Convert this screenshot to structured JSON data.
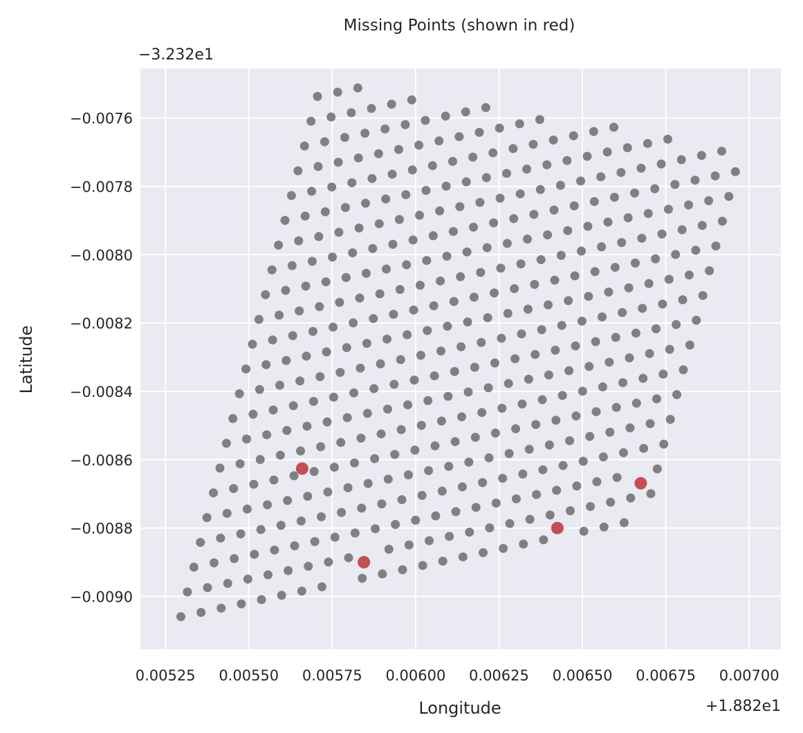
{
  "chart_data": {
    "type": "scatter",
    "title": "Missing Points (shown in red)",
    "xlabel": "Longitude",
    "ylabel": "Latitude",
    "x_offset_label": "+1.882e1",
    "y_offset_label": "−3.232e1",
    "x_offset": 18.82,
    "y_offset": -32.32,
    "xlim": [
      0.005175,
      0.007095
    ],
    "ylim": [
      -0.009155,
      -0.007455
    ],
    "xticks": [
      0.00525,
      0.0055,
      0.00575,
      0.006,
      0.00625,
      0.0065,
      0.00675,
      0.007
    ],
    "xtick_labels": [
      "0.00525",
      "0.00550",
      "0.00575",
      "0.00600",
      "0.00625",
      "0.00650",
      "0.00675",
      "0.00700"
    ],
    "yticks": [
      -0.009,
      -0.0088,
      -0.0086,
      -0.0084,
      -0.0082,
      -0.008,
      -0.0078,
      -0.0076
    ],
    "ytick_labels": [
      "−0.0090",
      "−0.0088",
      "−0.0086",
      "−0.0084",
      "−0.0082",
      "−0.0080",
      "−0.0078",
      "−0.0076"
    ],
    "grid": true,
    "colors": {
      "background": "#eaeaf2",
      "grid": "#ffffff",
      "present": "#808080",
      "missing": "#c44e52"
    },
    "grid_points": {
      "origin": [
        0.005236,
        -0.009072
      ],
      "step_a": [
        1.95e-05,
        7.25e-05
      ],
      "step_b": [
        6.04e-05,
        1.25e-05
      ],
      "rows": 30,
      "cols": 25,
      "boundary": {
        "left": [
          [
            -0.0091,
            0.005236
          ],
          [
            -0.00749,
            0.00571
          ]
        ],
        "right": [
          [
            -0.00924,
            0.00705
          ],
          [
            -0.0089,
            0.00678
          ],
          [
            -0.00868,
            0.006713
          ],
          [
            -0.00797,
            0.006976
          ],
          [
            -0.00749,
            0.007072
          ]
        ],
        "top": [
          [
            0.00571,
            -0.00749
          ],
          [
            0.006975,
            -0.0077
          ]
        ],
        "bottom": [
          [
            0.005236,
            -0.009085
          ],
          [
            0.00556,
            -0.009035
          ],
          [
            0.00578,
            -0.008945
          ],
          [
            0.00592,
            -0.008955
          ],
          [
            0.00604,
            -0.008955
          ],
          [
            0.00617,
            -0.00893
          ],
          [
            0.00632,
            -0.00889
          ],
          [
            0.00664,
            -0.00884
          ],
          [
            0.00671,
            -0.0087
          ]
        ]
      }
    },
    "series": [
      {
        "name": "missing",
        "x": [
          0.00566,
          0.005845,
          0.006425,
          0.006675
        ],
        "y": [
          -0.008626,
          -0.0089,
          -0.0088,
          -0.008669
        ]
      }
    ]
  }
}
